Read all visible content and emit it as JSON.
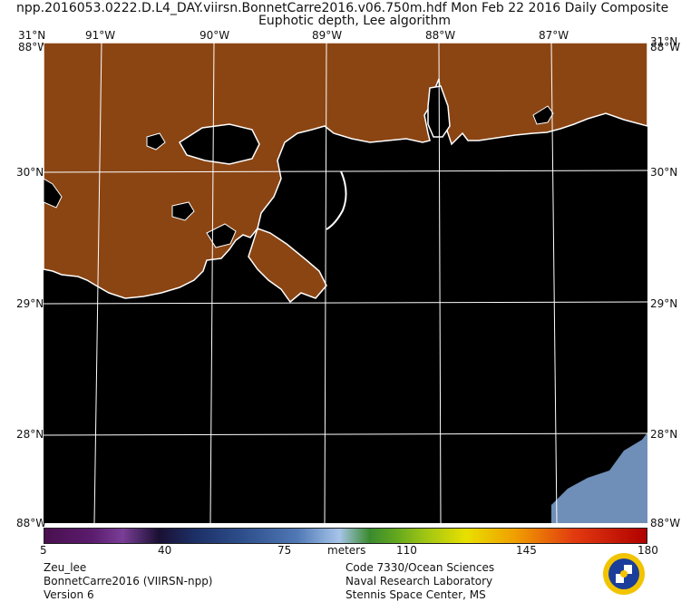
{
  "header": {
    "line1": "npp.2016053.0222.D.L4_DAY.viirsn.BonnetCarre2016.v06.750m.hdf    Mon Feb 22 2016 Daily Composite",
    "line2": "Euphotic depth, Lee algorithm"
  },
  "axes": {
    "top_left_lat": "31°N",
    "top_right_lat": "31°N",
    "top_left_lon": "88°W",
    "top_right_lon": "88°W",
    "lon_labels": [
      "91°W",
      "90°W",
      "89°W",
      "88°W",
      "87°W"
    ],
    "lat_labels_left": [
      "30°N",
      "29°N",
      "28°N"
    ],
    "lat_labels_right": [
      "30°N",
      "29°N",
      "28°N"
    ],
    "bottom_left": "88°W",
    "bottom_right": "88°W"
  },
  "colorbar": {
    "ticks": [
      "5",
      "40",
      "75",
      "110",
      "145",
      "180"
    ],
    "unit": "meters"
  },
  "footer": {
    "left": [
      "Zeu_lee",
      "BonnetCarre2016 (VIIRSN-npp)",
      "Version 6"
    ],
    "right": [
      "Code 7330/Ocean Sciences",
      "Naval Research Laboratory",
      "Stennis Space Center, MS"
    ]
  },
  "colors": {
    "land": "#8b4513",
    "water": "#000000",
    "coast": "#ffffff",
    "grid": "#ffffff",
    "shelf_water": "#6f8fb8"
  }
}
